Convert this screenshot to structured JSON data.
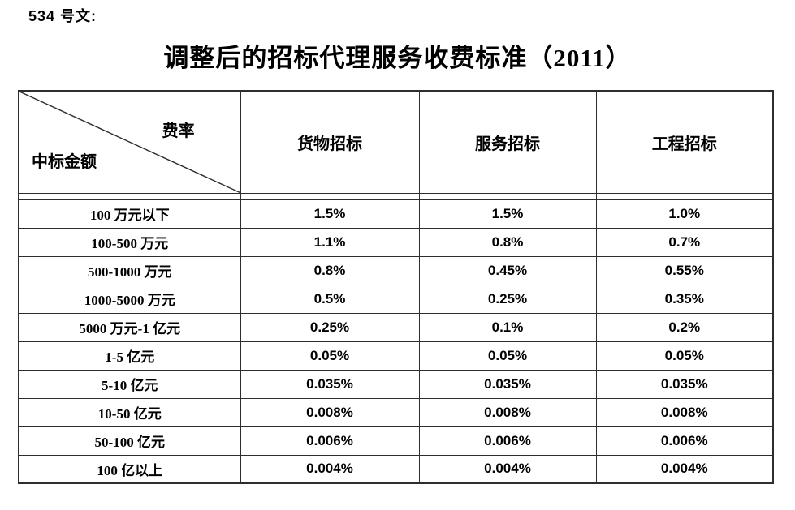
{
  "doc_label": "534 号文:",
  "title": "调整后的招标代理服务收费标准（2011）",
  "colors": {
    "text": "#000000",
    "border": "#2d2d2d",
    "background": "#ffffff"
  },
  "table": {
    "corner": {
      "top_right_label": "费率",
      "bottom_left_label": "中标金额"
    },
    "columns": [
      "货物招标",
      "服务招标",
      "工程招标"
    ],
    "rows": [
      {
        "label": "100 万元以下",
        "values": [
          "1.5%",
          "1.5%",
          "1.0%"
        ]
      },
      {
        "label": "100-500 万元",
        "values": [
          "1.1%",
          "0.8%",
          "0.7%"
        ]
      },
      {
        "label": "500-1000 万元",
        "values": [
          "0.8%",
          "0.45%",
          "0.55%"
        ]
      },
      {
        "label": "1000-5000 万元",
        "values": [
          "0.5%",
          "0.25%",
          "0.35%"
        ]
      },
      {
        "label": "5000 万元-1 亿元",
        "values": [
          "0.25%",
          "0.1%",
          "0.2%"
        ]
      },
      {
        "label": "1-5 亿元",
        "values": [
          "0.05%",
          "0.05%",
          "0.05%"
        ]
      },
      {
        "label": "5-10 亿元",
        "values": [
          "0.035%",
          "0.035%",
          "0.035%"
        ]
      },
      {
        "label": "10-50 亿元",
        "values": [
          "0.008%",
          "0.008%",
          "0.008%"
        ]
      },
      {
        "label": "50-100 亿元",
        "values": [
          "0.006%",
          "0.006%",
          "0.006%"
        ]
      },
      {
        "label": "100 亿以上",
        "values": [
          "0.004%",
          "0.004%",
          "0.004%"
        ]
      }
    ]
  }
}
